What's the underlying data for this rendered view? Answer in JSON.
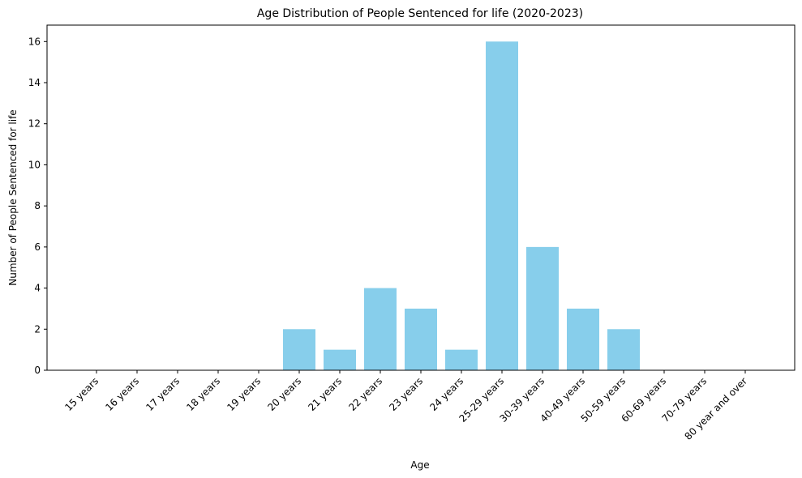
{
  "chart_data": {
    "type": "bar",
    "title": "Age Distribution of People Sentenced for life (2020-2023)",
    "xlabel": "Age",
    "ylabel": "Number of People Sentenced for life",
    "categories": [
      "15 years",
      "16 years",
      "17 years",
      "18 years",
      "19 years",
      "20 years",
      "21 years",
      "22 years",
      "23 years",
      "24 years",
      "25-29 years",
      "30-39 years",
      "40-49 years",
      "50-59 years",
      "60-69 years",
      "70-79 years",
      "80 year and over"
    ],
    "values": [
      0,
      0,
      0,
      0,
      0,
      2,
      1,
      4,
      3,
      1,
      16,
      6,
      3,
      2,
      0,
      0,
      0
    ],
    "ylim": [
      0,
      16.8
    ],
    "yticks": [
      0,
      2,
      4,
      6,
      8,
      10,
      12,
      14,
      16
    ],
    "grid": false,
    "bar_color": "#87CEEB"
  }
}
